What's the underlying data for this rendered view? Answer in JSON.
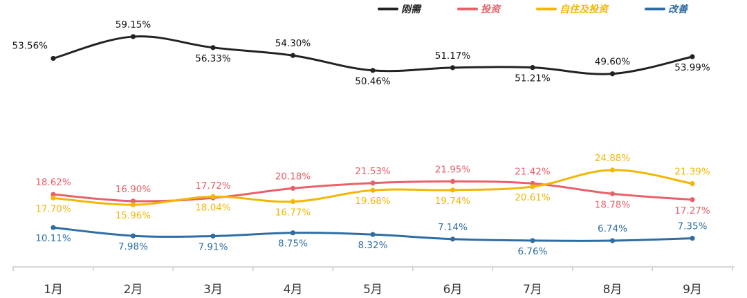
{
  "chart_data": {
    "type": "line",
    "categories": [
      "1月",
      "2月",
      "3月",
      "4月",
      "5月",
      "6月",
      "7月",
      "8月",
      "9月"
    ],
    "series": [
      {
        "name": "刚需",
        "color": "#222222",
        "values": [
          53.56,
          59.15,
          56.33,
          54.3,
          50.46,
          51.17,
          51.21,
          49.6,
          53.99
        ],
        "labels": [
          "53.56%",
          "59.15%",
          "56.33%",
          "54.30%",
          "50.46%",
          "51.17%",
          "51.21%",
          "49.60%",
          "53.99%"
        ]
      },
      {
        "name": "投资",
        "color": "#e8616a",
        "values": [
          18.62,
          16.9,
          17.72,
          20.18,
          21.53,
          21.95,
          21.42,
          18.78,
          17.27
        ],
        "labels": [
          "18.62%",
          "16.90%",
          "17.72%",
          "20.18%",
          "21.53%",
          "21.95%",
          "21.42%",
          "18.78%",
          "17.27%"
        ]
      },
      {
        "name": "自住及投资",
        "color": "#f2b705",
        "values": [
          17.7,
          15.96,
          18.04,
          16.77,
          19.68,
          19.74,
          20.61,
          24.88,
          21.39
        ],
        "labels": [
          "17.70%",
          "15.96%",
          "18.04%",
          "16.77%",
          "19.68%",
          "19.74%",
          "20.61%",
          "24.88%",
          "21.39%"
        ]
      },
      {
        "name": "改善",
        "color": "#2e6da4",
        "values": [
          10.11,
          7.98,
          7.91,
          8.75,
          8.32,
          7.14,
          6.76,
          6.74,
          7.35
        ],
        "labels": [
          "10.11%",
          "7.98%",
          "7.91%",
          "8.75%",
          "8.32%",
          "7.14%",
          "6.76%",
          "6.74%",
          "7.35%"
        ]
      }
    ],
    "title": "",
    "xlabel": "",
    "ylabel": "",
    "ylim": [
      0,
      65
    ],
    "grid": false,
    "legend_position": "top-right",
    "axis_color": "#cccccc"
  }
}
